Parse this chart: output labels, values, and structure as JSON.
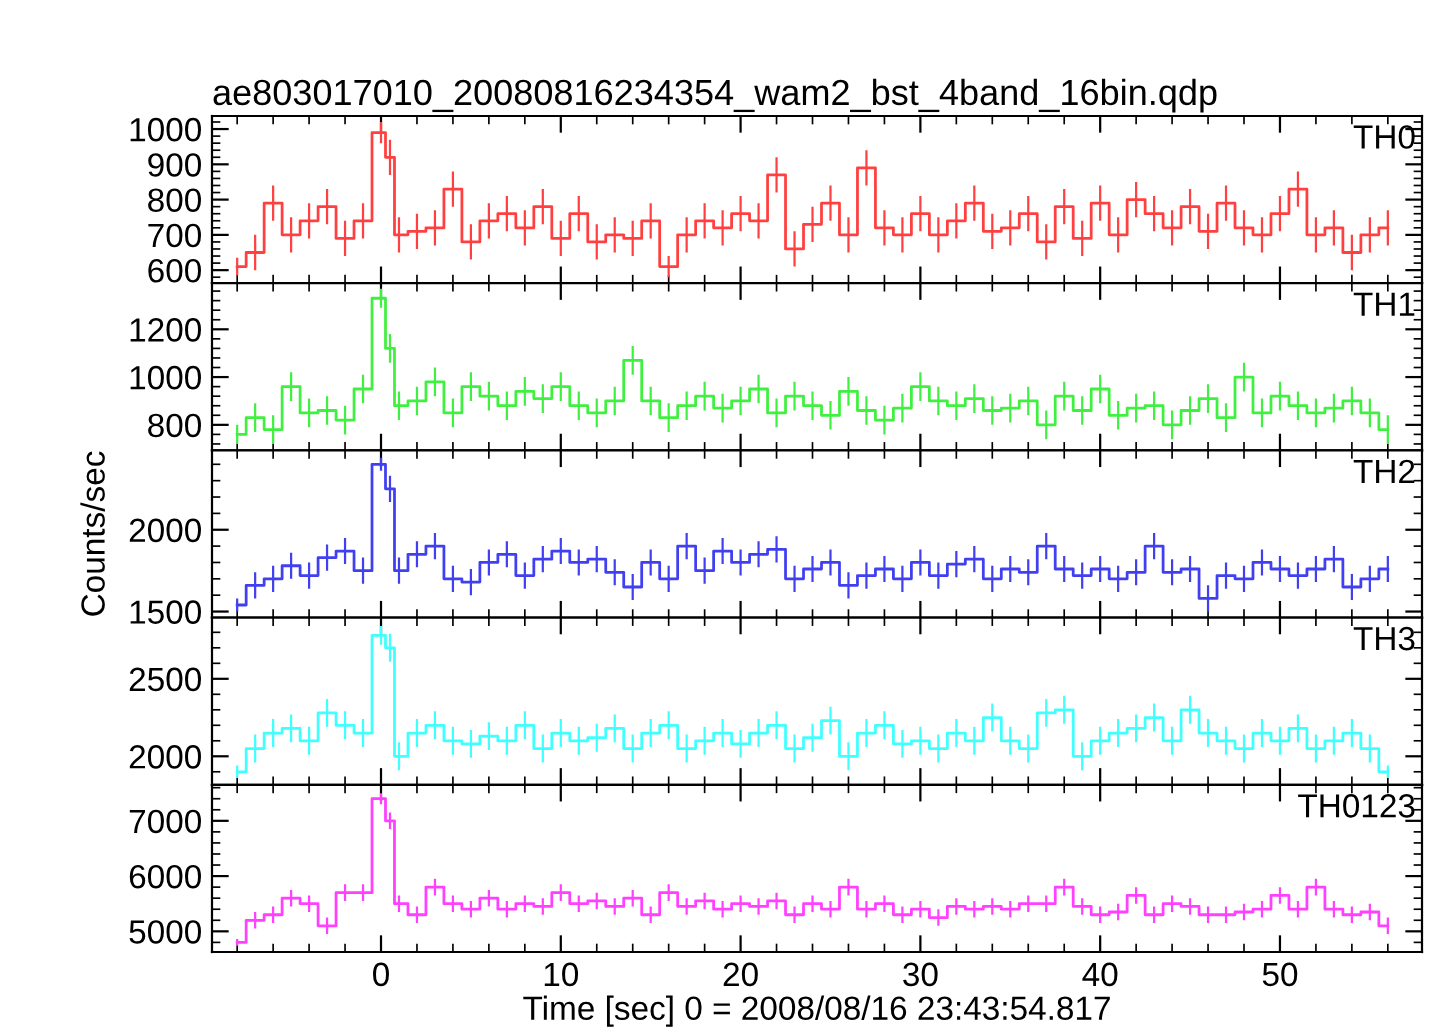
{
  "chart_data": [
    {
      "type": "step",
      "title": "ae803017010_20080816234354_wam2_bst_4band_16bin.qdp",
      "annotations": [
        "TH0"
      ],
      "tick_labels": "y",
      "xlim": [
        -9.4,
        57.9
      ],
      "xticks": [
        0,
        10,
        20,
        30,
        40,
        50
      ],
      "ylim": [
        563,
        1037
      ],
      "yticks": [
        600,
        700,
        800,
        900,
        1000
      ],
      "x": [
        -8,
        -7,
        -6,
        -5,
        -4,
        -3,
        -2,
        -1,
        0,
        0.5,
        1,
        2,
        3,
        4,
        5,
        6,
        7,
        8,
        9,
        10,
        11,
        12,
        13,
        14,
        15,
        16,
        17,
        18,
        19,
        20,
        21,
        22,
        23,
        24,
        25,
        26,
        27,
        28,
        29,
        30,
        31,
        32,
        33,
        34,
        35,
        36,
        37,
        38,
        39,
        40,
        41,
        42,
        43,
        44,
        45,
        46,
        47,
        48,
        49,
        50,
        51,
        52,
        53,
        54,
        55,
        56
      ],
      "series": [
        {
          "color": "#ff4040",
          "values": [
            610,
            650,
            790,
            700,
            740,
            780,
            690,
            740,
            990,
            920,
            700,
            710,
            720,
            830,
            680,
            740,
            760,
            720,
            780,
            690,
            760,
            680,
            700,
            690,
            740,
            610,
            700,
            740,
            720,
            760,
            740,
            870,
            660,
            730,
            790,
            700,
            890,
            720,
            700,
            760,
            700,
            740,
            790,
            710,
            720,
            760,
            680,
            780,
            690,
            790,
            700,
            800,
            760,
            720,
            780,
            710,
            790,
            720,
            700,
            760,
            830,
            700,
            720,
            650,
            700,
            720
          ],
          "errors": [
            25,
            50,
            50,
            50,
            50,
            50,
            50,
            50,
            30,
            50,
            50,
            50,
            50,
            50,
            50,
            50,
            50,
            50,
            50,
            50,
            50,
            50,
            50,
            50,
            50,
            30,
            50,
            50,
            50,
            50,
            50,
            50,
            50,
            50,
            50,
            50,
            50,
            50,
            50,
            50,
            50,
            50,
            50,
            50,
            50,
            50,
            50,
            50,
            50,
            50,
            50,
            50,
            50,
            50,
            50,
            50,
            50,
            50,
            50,
            50,
            50,
            50,
            50,
            50,
            50,
            50
          ]
        }
      ]
    },
    {
      "type": "step",
      "annotations": [
        "TH1"
      ],
      "tick_labels": "y",
      "xlim": [
        -9.4,
        57.9
      ],
      "xticks": [
        0,
        10,
        20,
        30,
        40,
        50
      ],
      "ylim": [
        693,
        1393
      ],
      "yticks": [
        800,
        1000,
        1200
      ],
      "x": [
        -8,
        -7,
        -6,
        -5,
        -4,
        -3,
        -2,
        -1,
        0,
        0.5,
        1,
        2,
        3,
        4,
        5,
        6,
        7,
        8,
        9,
        10,
        11,
        12,
        13,
        14,
        15,
        16,
        17,
        18,
        19,
        20,
        21,
        22,
        23,
        24,
        25,
        26,
        27,
        28,
        29,
        30,
        31,
        32,
        33,
        34,
        35,
        36,
        37,
        38,
        39,
        40,
        41,
        42,
        43,
        44,
        45,
        46,
        47,
        48,
        49,
        50,
        51,
        52,
        53,
        54,
        55,
        56
      ],
      "series": [
        {
          "color": "#40f040",
          "values": [
            760,
            830,
            780,
            960,
            850,
            860,
            820,
            950,
            1330,
            1120,
            880,
            900,
            980,
            850,
            960,
            920,
            880,
            940,
            910,
            960,
            880,
            850,
            900,
            1070,
            900,
            830,
            880,
            920,
            870,
            900,
            950,
            850,
            920,
            880,
            840,
            940,
            860,
            820,
            870,
            960,
            900,
            880,
            910,
            860,
            870,
            900,
            800,
            920,
            860,
            950,
            840,
            870,
            880,
            800,
            860,
            910,
            830,
            1000,
            850,
            920,
            880,
            850,
            870,
            900,
            850,
            780
          ],
          "errors": [
            40,
            60,
            60,
            60,
            60,
            60,
            60,
            60,
            40,
            60,
            60,
            60,
            60,
            60,
            60,
            60,
            60,
            60,
            60,
            60,
            60,
            60,
            60,
            60,
            60,
            60,
            60,
            60,
            60,
            60,
            60,
            60,
            60,
            60,
            60,
            60,
            60,
            60,
            60,
            60,
            60,
            60,
            60,
            60,
            60,
            60,
            60,
            60,
            60,
            60,
            60,
            60,
            60,
            60,
            60,
            60,
            60,
            60,
            60,
            60,
            60,
            60,
            60,
            60,
            60,
            60
          ]
        }
      ]
    },
    {
      "type": "step",
      "annotations": [
        "TH2"
      ],
      "ylabel": "Counts/sec",
      "tick_labels": "y",
      "xlim": [
        -9.4,
        57.9
      ],
      "xticks": [
        0,
        10,
        20,
        30,
        40,
        50
      ],
      "ylim": [
        1463,
        2485
      ],
      "yticks": [
        1500,
        2000
      ],
      "x": [
        -8,
        -7,
        -6,
        -5,
        -4,
        -3,
        -2,
        -1,
        0,
        0.5,
        1,
        2,
        3,
        4,
        5,
        6,
        7,
        8,
        9,
        10,
        11,
        12,
        13,
        14,
        15,
        16,
        17,
        18,
        19,
        20,
        21,
        22,
        23,
        24,
        25,
        26,
        27,
        28,
        29,
        30,
        31,
        32,
        33,
        34,
        35,
        36,
        37,
        38,
        39,
        40,
        41,
        42,
        43,
        44,
        45,
        46,
        47,
        48,
        49,
        50,
        51,
        52,
        53,
        54,
        55,
        56
      ],
      "series": [
        {
          "color": "#4040f0",
          "values": [
            1540,
            1660,
            1700,
            1780,
            1720,
            1830,
            1870,
            1750,
            2400,
            2250,
            1750,
            1850,
            1900,
            1700,
            1680,
            1800,
            1850,
            1720,
            1820,
            1870,
            1800,
            1820,
            1740,
            1650,
            1800,
            1700,
            1900,
            1750,
            1870,
            1800,
            1850,
            1880,
            1700,
            1760,
            1800,
            1660,
            1720,
            1760,
            1700,
            1800,
            1720,
            1790,
            1820,
            1700,
            1760,
            1740,
            1900,
            1760,
            1720,
            1760,
            1700,
            1740,
            1900,
            1740,
            1760,
            1580,
            1720,
            1700,
            1800,
            1760,
            1720,
            1760,
            1820,
            1650,
            1700,
            1760
          ],
          "errors": [
            40,
            80,
            80,
            80,
            80,
            80,
            80,
            80,
            40,
            80,
            80,
            80,
            80,
            80,
            80,
            80,
            80,
            80,
            80,
            80,
            80,
            80,
            80,
            80,
            80,
            80,
            80,
            80,
            80,
            80,
            80,
            80,
            80,
            80,
            80,
            80,
            80,
            80,
            80,
            80,
            80,
            80,
            80,
            80,
            80,
            80,
            80,
            80,
            80,
            80,
            80,
            80,
            80,
            80,
            80,
            80,
            80,
            80,
            80,
            80,
            80,
            80,
            80,
            80,
            80,
            80
          ]
        }
      ]
    },
    {
      "type": "step",
      "annotations": [
        "TH3"
      ],
      "tick_labels": "y",
      "xlim": [
        -9.4,
        57.9
      ],
      "xticks": [
        0,
        10,
        20,
        30,
        40,
        50
      ],
      "ylim": [
        1816,
        2895
      ],
      "yticks": [
        2000,
        2500
      ],
      "x": [
        -8,
        -7,
        -6,
        -5,
        -4,
        -3,
        -2,
        -1,
        0,
        0.5,
        1,
        2,
        3,
        4,
        5,
        6,
        7,
        8,
        9,
        10,
        11,
        12,
        13,
        14,
        15,
        16,
        17,
        18,
        19,
        20,
        21,
        22,
        23,
        24,
        25,
        26,
        27,
        28,
        29,
        30,
        31,
        32,
        33,
        34,
        35,
        36,
        37,
        38,
        39,
        40,
        41,
        42,
        43,
        44,
        45,
        46,
        47,
        48,
        49,
        50,
        51,
        52,
        53,
        54,
        55,
        56
      ],
      "series": [
        {
          "color": "#40ffff",
          "values": [
            1900,
            2050,
            2150,
            2180,
            2100,
            2280,
            2200,
            2150,
            2780,
            2700,
            2000,
            2150,
            2200,
            2100,
            2080,
            2130,
            2100,
            2200,
            2050,
            2150,
            2100,
            2120,
            2180,
            2050,
            2150,
            2200,
            2050,
            2100,
            2150,
            2080,
            2150,
            2200,
            2050,
            2120,
            2230,
            2000,
            2150,
            2200,
            2080,
            2100,
            2050,
            2150,
            2100,
            2250,
            2100,
            2050,
            2280,
            2300,
            2000,
            2100,
            2150,
            2180,
            2250,
            2100,
            2300,
            2150,
            2100,
            2050,
            2150,
            2100,
            2180,
            2050,
            2100,
            2150,
            2050,
            1900
          ],
          "errors": [
            40,
            90,
            90,
            90,
            90,
            90,
            90,
            90,
            60,
            90,
            90,
            90,
            90,
            90,
            90,
            90,
            90,
            90,
            90,
            90,
            90,
            90,
            90,
            90,
            90,
            90,
            90,
            90,
            90,
            90,
            90,
            90,
            90,
            90,
            90,
            90,
            90,
            90,
            90,
            90,
            90,
            90,
            90,
            90,
            90,
            90,
            90,
            90,
            90,
            90,
            90,
            90,
            90,
            90,
            90,
            90,
            90,
            90,
            90,
            90,
            90,
            90,
            90,
            90,
            90,
            40
          ]
        }
      ]
    },
    {
      "type": "step",
      "annotations": [
        "TH0123"
      ],
      "xlabel": "Time [sec] 0 = 2008/08/16 23:43:54.817",
      "xlim": [
        -9.4,
        57.9
      ],
      "xticks": [
        0,
        10,
        20,
        30,
        40,
        50
      ],
      "ylim": [
        4626,
        7652
      ],
      "yticks": [
        5000,
        6000,
        7000
      ],
      "x": [
        -8,
        -7,
        -6,
        -5,
        -4,
        -3,
        -2,
        -1,
        0,
        0.5,
        1,
        2,
        3,
        4,
        5,
        6,
        7,
        8,
        9,
        10,
        11,
        12,
        13,
        14,
        15,
        16,
        17,
        18,
        19,
        20,
        21,
        22,
        23,
        24,
        25,
        26,
        27,
        28,
        29,
        30,
        31,
        32,
        33,
        34,
        35,
        36,
        37,
        38,
        39,
        40,
        41,
        42,
        43,
        44,
        45,
        46,
        47,
        48,
        49,
        50,
        51,
        52,
        53,
        54,
        55,
        56
      ],
      "series": [
        {
          "color": "#ff40ff",
          "values": [
            4800,
            5200,
            5300,
            5600,
            5500,
            5100,
            5700,
            5700,
            7400,
            7000,
            5500,
            5300,
            5800,
            5500,
            5400,
            5600,
            5400,
            5500,
            5450,
            5700,
            5500,
            5550,
            5450,
            5600,
            5300,
            5700,
            5450,
            5550,
            5400,
            5500,
            5450,
            5550,
            5300,
            5500,
            5400,
            5800,
            5400,
            5500,
            5300,
            5400,
            5250,
            5450,
            5400,
            5450,
            5400,
            5500,
            5500,
            5800,
            5450,
            5300,
            5350,
            5650,
            5300,
            5500,
            5450,
            5300,
            5300,
            5350,
            5400,
            5650,
            5400,
            5800,
            5400,
            5300,
            5350,
            5100
          ],
          "errors": [
            60,
            150,
            150,
            150,
            150,
            150,
            150,
            150,
            100,
            150,
            150,
            150,
            150,
            150,
            150,
            150,
            150,
            150,
            150,
            150,
            150,
            150,
            150,
            150,
            150,
            150,
            150,
            150,
            150,
            150,
            150,
            150,
            150,
            150,
            150,
            150,
            150,
            150,
            150,
            150,
            150,
            150,
            150,
            150,
            150,
            150,
            150,
            150,
            150,
            150,
            150,
            150,
            150,
            150,
            150,
            150,
            150,
            150,
            150,
            150,
            150,
            150,
            150,
            150,
            150,
            150
          ]
        }
      ]
    }
  ]
}
